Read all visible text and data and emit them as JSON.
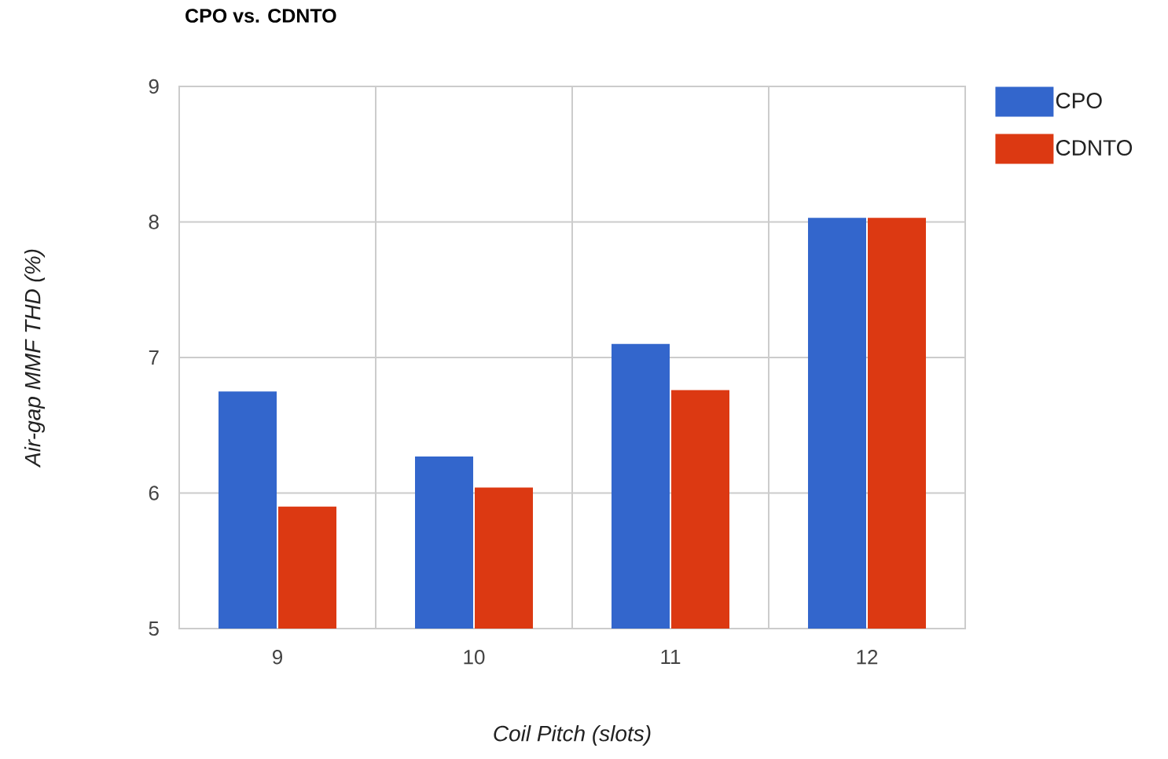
{
  "chart_data": {
    "type": "bar",
    "title": "CPO vs. CDNTO",
    "xlabel": "Coil Pitch (slots)",
    "ylabel": "Air-gap MMF THD (%)",
    "categories": [
      "9",
      "10",
      "11",
      "12"
    ],
    "series": [
      {
        "name": "CPO",
        "color": "#3366cc",
        "values": [
          6.75,
          6.27,
          7.1,
          8.03
        ]
      },
      {
        "name": "CDNTO",
        "color": "#dc3912",
        "values": [
          5.9,
          6.04,
          6.76,
          8.03
        ]
      }
    ],
    "ylim": [
      5,
      9
    ],
    "yticks": [
      5,
      6,
      7,
      8,
      9
    ],
    "grid": true,
    "legend": "right"
  }
}
